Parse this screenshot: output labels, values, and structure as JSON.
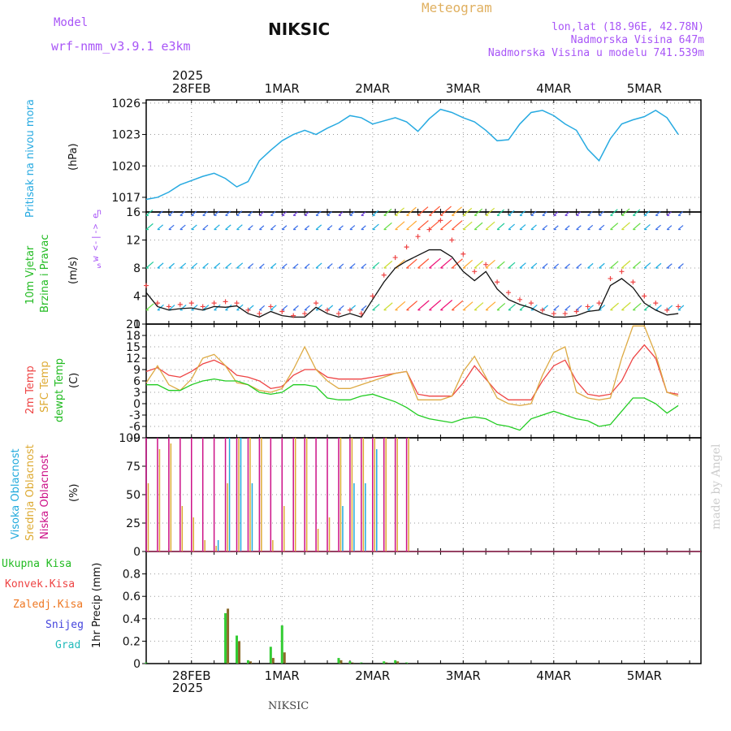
{
  "header": {
    "model_label": "Model",
    "model_name": "wrf-nmm_v3.9.1 e3km",
    "station": "NIKSIC",
    "title": "Meteogram",
    "coords": "lon,lat (18.96E, 42.78N)",
    "elevation": "Nadmorska Visina 647m",
    "model_elevation": "Nadmorska Visina u modelu 741.539m"
  },
  "footer": {
    "station": "NIKSIC",
    "credit": "made by Angel"
  },
  "colors": {
    "pressure": "#27aae1",
    "temp2m": "#ee4444",
    "sfc": "#ddaa44",
    "dew": "#22cc22",
    "high": "#22aadd",
    "mid": "#ddaa33",
    "low": "#cc1188",
    "precip_total": "#33cc33",
    "precip_conv": "#ee4444"
  },
  "chart_data": [
    {
      "type": "line",
      "panel": "pressure",
      "ylabel_1": "Pritisak na nivou mora",
      "ylabel_2": "(hPa)",
      "ylim": [
        1015.6,
        1026.3
      ],
      "yticks": [
        1017,
        1020,
        1023,
        1026
      ],
      "x_start_label_year": "2025",
      "days": [
        "28FEB",
        "1MAR",
        "2MAR",
        "3MAR",
        "4MAR",
        "5MAR"
      ],
      "x_hours": [
        0,
        3,
        6,
        9,
        12,
        15,
        18,
        21,
        24,
        27,
        30,
        33,
        36,
        39,
        42,
        45,
        48,
        51,
        54,
        57,
        60,
        63,
        66,
        69,
        72,
        75,
        78,
        81,
        84,
        87,
        90,
        93,
        96,
        99,
        102,
        105,
        108,
        111,
        114,
        117,
        120,
        123,
        126,
        129,
        132,
        135,
        138,
        141
      ],
      "values": [
        1016.8,
        1017.0,
        1017.5,
        1018.2,
        1018.6,
        1019.0,
        1019.3,
        1018.8,
        1018.0,
        1018.5,
        1020.5,
        1021.5,
        1022.4,
        1023.0,
        1023.4,
        1023.0,
        1023.6,
        1024.1,
        1024.8,
        1024.6,
        1024.0,
        1024.3,
        1024.6,
        1024.2,
        1023.3,
        1024.5,
        1025.4,
        1025.1,
        1024.6,
        1024.2,
        1023.4,
        1022.4,
        1022.5,
        1024.0,
        1025.1,
        1025.3,
        1024.8,
        1024.0,
        1023.4,
        1021.6,
        1020.5,
        1022.6,
        1024.0,
        1024.4,
        1024.7,
        1025.3,
        1024.6,
        1023.0
      ]
    },
    {
      "type": "line",
      "panel": "wind",
      "ylabel_1": "10m Vjetar",
      "ylabel_2": "Brzina i Pravac",
      "ylabel_3": "(m/s)",
      "compass": "w <-|-> e",
      "compass_top": "n",
      "compass_bottom": "s",
      "ylim": [
        0,
        16
      ],
      "yticks": [
        0,
        4,
        8,
        12,
        16
      ],
      "series": [
        {
          "name": "speed",
          "values": [
            4.5,
            2.5,
            2.0,
            2.2,
            2.3,
            2.0,
            2.5,
            2.4,
            2.6,
            1.5,
            1.0,
            1.8,
            1.2,
            1.0,
            1.0,
            2.4,
            1.5,
            1.0,
            1.5,
            1.0,
            3.5,
            6.0,
            8.0,
            9.0,
            9.8,
            10.6,
            10.6,
            9.6,
            7.5,
            6.2,
            7.5,
            5.0,
            3.5,
            2.8,
            2.3,
            1.5,
            1.0,
            1.0,
            1.2,
            1.8,
            2.0,
            5.5,
            6.5,
            5.2,
            3.0,
            2.0,
            1.3,
            1.5
          ]
        },
        {
          "name": "gust",
          "values": [
            5.5,
            3.0,
            2.5,
            2.8,
            3.0,
            2.5,
            3.0,
            3.2,
            3.0,
            2.0,
            1.5,
            2.5,
            1.8,
            1.2,
            1.5,
            3.0,
            2.0,
            1.5,
            2.0,
            1.5,
            4.0,
            7.0,
            9.5,
            11.0,
            12.5,
            13.5,
            14.8,
            12.0,
            10.0,
            7.5,
            8.5,
            6.0,
            4.5,
            3.5,
            3.0,
            2.0,
            1.5,
            1.5,
            1.8,
            2.5,
            3.0,
            6.5,
            7.5,
            6.0,
            4.0,
            3.0,
            2.0,
            2.5
          ]
        }
      ],
      "barb_levels": [
        15.5,
        13.5,
        8.0,
        2.0
      ]
    },
    {
      "type": "line",
      "panel": "temperature",
      "ylabel_1": "2m Temp",
      "ylabel_2": "SFC Temp",
      "ylabel_3": "dewpt Temp",
      "ylabel_4": "(C)",
      "ylim": [
        -9,
        21
      ],
      "yticks": [
        -9,
        -6,
        -3,
        0,
        3,
        6,
        9,
        12,
        15,
        18,
        21
      ],
      "series": [
        {
          "name": "2m Temp",
          "values": [
            8.5,
            9.5,
            7.5,
            7.0,
            8.5,
            10.5,
            11.5,
            10.0,
            7.5,
            7.0,
            6.0,
            4.0,
            4.5,
            7.5,
            9.0,
            9.0,
            7.0,
            6.5,
            6.5,
            6.5,
            7.0,
            7.5,
            8.0,
            8.5,
            2.5,
            2.0,
            2.0,
            2.0,
            5.5,
            10.0,
            6.5,
            3.0,
            1.0,
            1.0,
            1.0,
            6.0,
            10.0,
            11.5,
            6.0,
            2.5,
            2.0,
            2.5,
            6.0,
            12.0,
            15.5,
            12.0,
            3.0,
            2.5
          ]
        },
        {
          "name": "SFC Temp",
          "values": [
            5.5,
            10.0,
            5.0,
            3.5,
            6.5,
            12.0,
            13.0,
            10.0,
            5.5,
            5.0,
            3.5,
            3.0,
            4.0,
            9.0,
            15.0,
            9.0,
            6.0,
            4.0,
            4.0,
            5.0,
            6.0,
            7.0,
            8.0,
            8.5,
            1.0,
            1.0,
            1.0,
            2.0,
            8.5,
            12.5,
            7.0,
            1.5,
            0.0,
            -0.5,
            0.0,
            7.5,
            13.5,
            15.0,
            3.0,
            1.5,
            1.0,
            1.5,
            12.0,
            20.5,
            20.5,
            13.0,
            3.0,
            2.0
          ]
        },
        {
          "name": "dewpt Temp",
          "values": [
            5.0,
            5.0,
            3.5,
            3.5,
            5.0,
            6.0,
            6.5,
            6.0,
            6.0,
            5.0,
            3.0,
            2.5,
            3.0,
            5.0,
            5.0,
            4.5,
            1.5,
            1.0,
            1.0,
            2.0,
            2.5,
            1.5,
            0.5,
            -1.0,
            -3.0,
            -4.0,
            -4.5,
            -5.0,
            -4.0,
            -3.5,
            -4.0,
            -5.5,
            -6.0,
            -7.0,
            -4.0,
            -3.0,
            -2.0,
            -3.0,
            -4.0,
            -4.5,
            -6.0,
            -5.5,
            -2.0,
            1.5,
            1.5,
            0.0,
            -2.5,
            -0.5
          ]
        }
      ]
    },
    {
      "type": "bar",
      "panel": "clouds",
      "ylabel_1": "Visoka Oblacnost",
      "ylabel_2": "Srednja Oblacnost",
      "ylabel_3": "Niska Oblacnost",
      "ylabel_4": "(%)",
      "ylim": [
        0,
        100
      ],
      "yticks": [
        0,
        25,
        50,
        75,
        100
      ],
      "series": [
        {
          "name": "Niska",
          "values": [
            100,
            100,
            100,
            100,
            100,
            100,
            100,
            100,
            100,
            100,
            100,
            100,
            100,
            100,
            100,
            100,
            100,
            100,
            100,
            100,
            100,
            100,
            100,
            100,
            0,
            0,
            0,
            0,
            0,
            0,
            0,
            0,
            0,
            0,
            0,
            0,
            0,
            0,
            0,
            0,
            0,
            0,
            0,
            0,
            0,
            0,
            0,
            0
          ]
        },
        {
          "name": "Srednja",
          "values": [
            60,
            90,
            95,
            40,
            30,
            10,
            5,
            60,
            100,
            100,
            100,
            10,
            40,
            100,
            100,
            20,
            30,
            100,
            100,
            100,
            100,
            100,
            100,
            100,
            0,
            0,
            0,
            0,
            0,
            0,
            0,
            0,
            0,
            0,
            0,
            0,
            0,
            0,
            0,
            0,
            0,
            0,
            0,
            0,
            0,
            0,
            0,
            0
          ]
        },
        {
          "name": "Visoka",
          "values": [
            0,
            0,
            0,
            0,
            0,
            0,
            10,
            100,
            100,
            60,
            0,
            0,
            0,
            0,
            0,
            0,
            0,
            40,
            60,
            60,
            90,
            0,
            0,
            0,
            0,
            0,
            0,
            0,
            0,
            0,
            0,
            0,
            0,
            0,
            0,
            0,
            0,
            0,
            0,
            0,
            0,
            0,
            0,
            0,
            0,
            0,
            0,
            0
          ]
        }
      ]
    },
    {
      "type": "bar",
      "panel": "precipitation",
      "ylabel_1": "Ukupna Kisa",
      "ylabel_2": "Konvek.Kisa",
      "ylabel_3": "Zaledj.Kisa",
      "ylabel_4": "Snijeg",
      "ylabel_5": "Grad",
      "ylabel_6": "1hr Precip (mm)",
      "ylim": [
        0,
        1.0
      ],
      "yticks": [
        0,
        0.2,
        0.4,
        0.6,
        0.8
      ],
      "series": [
        {
          "name": "Ukupna Kisa",
          "values": [
            0.01,
            0,
            0,
            0,
            0,
            0,
            0,
            0.45,
            0.25,
            0.03,
            0,
            0.15,
            0.34,
            0,
            0,
            0,
            0,
            0.05,
            0.02,
            0.01,
            0,
            0.02,
            0.03,
            0.01,
            0,
            0,
            0,
            0,
            0,
            0,
            0,
            0,
            0,
            0,
            0,
            0,
            0,
            0,
            0,
            0,
            0,
            0,
            0,
            0,
            0,
            0,
            0,
            0
          ]
        },
        {
          "name": "Konvek.Kisa",
          "values": [
            0,
            0,
            0,
            0,
            0,
            0,
            0,
            0.49,
            0.2,
            0.02,
            0,
            0.05,
            0.1,
            0,
            0,
            0,
            0,
            0.03,
            0.01,
            0,
            0,
            0.01,
            0.02,
            0,
            0,
            0,
            0,
            0,
            0,
            0,
            0,
            0,
            0,
            0,
            0,
            0,
            0,
            0,
            0,
            0,
            0,
            0,
            0,
            0,
            0,
            0,
            0,
            0
          ]
        }
      ]
    }
  ]
}
